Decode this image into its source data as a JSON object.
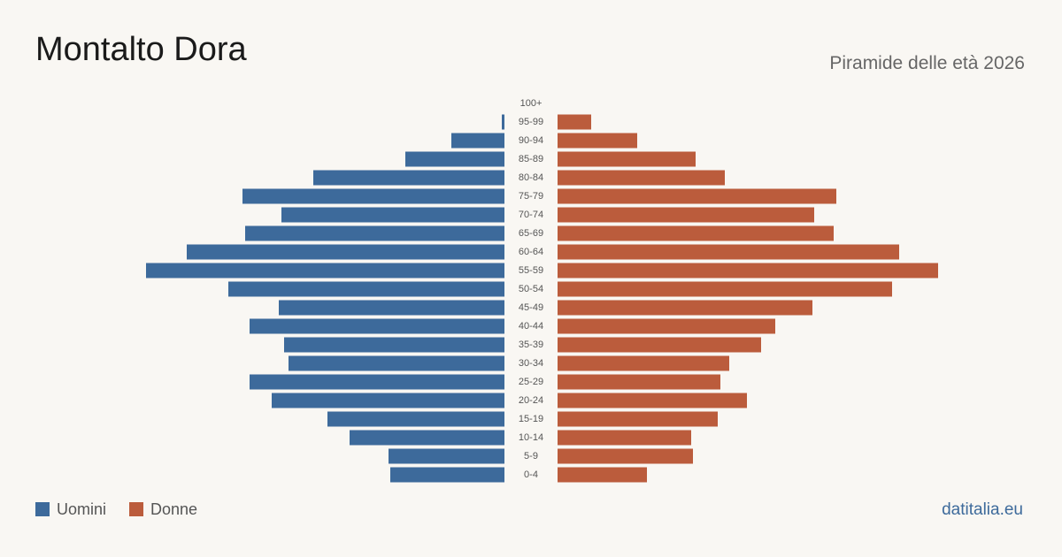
{
  "chart_data": {
    "type": "pyramid",
    "title": "Montalto Dora",
    "subtitle": "Piramide delle età 2026",
    "source": "datitalia.eu",
    "categories": [
      "100+",
      "95-99",
      "90-94",
      "85-89",
      "80-84",
      "75-79",
      "70-74",
      "65-69",
      "60-64",
      "55-59",
      "50-54",
      "45-49",
      "40-44",
      "35-39",
      "30-34",
      "25-29",
      "20-24",
      "15-19",
      "10-14",
      "5-9",
      "0-4"
    ],
    "series": [
      {
        "name": "Uomini",
        "color": "#3d6a9b",
        "values": [
          0,
          3,
          60,
          112,
          216,
          296,
          252,
          293,
          359,
          405,
          312,
          255,
          288,
          249,
          244,
          288,
          263,
          200,
          175,
          131,
          129
        ]
      },
      {
        "name": "Donne",
        "color": "#bb5c3c",
        "values": [
          0,
          38,
          90,
          156,
          189,
          315,
          290,
          312,
          386,
          430,
          378,
          288,
          246,
          230,
          194,
          184,
          214,
          181,
          151,
          153,
          101
        ]
      }
    ],
    "legend": "bottom-left"
  }
}
